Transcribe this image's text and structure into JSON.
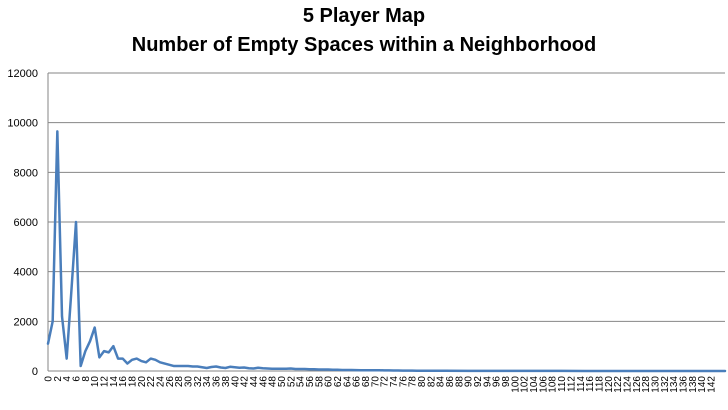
{
  "chart_data": {
    "type": "line",
    "title_lines": [
      "5 Player Map",
      "Number of Empty Spaces within a Neighborhood"
    ],
    "xlabel": "",
    "ylabel": "",
    "ylim": [
      0,
      12000
    ],
    "y_ticks": [
      0,
      2000,
      4000,
      6000,
      8000,
      10000,
      12000
    ],
    "grid": true,
    "legend": "none",
    "x_ticks": [
      0,
      2,
      4,
      6,
      8,
      10,
      12,
      14,
      16,
      18,
      20,
      22,
      24,
      26,
      28,
      30,
      32,
      34,
      36,
      38,
      40,
      42,
      44,
      46,
      48,
      50,
      52,
      54,
      56,
      58,
      60,
      62,
      64,
      66,
      68,
      70,
      72,
      74,
      76,
      78,
      80,
      82,
      84,
      86,
      88,
      90,
      92,
      94,
      96,
      98,
      100,
      102,
      104,
      106,
      108,
      110,
      112,
      114,
      116,
      118,
      120,
      122,
      124,
      126,
      128,
      130,
      132,
      134,
      136,
      138,
      140,
      142
    ],
    "x_range": [
      0,
      145
    ],
    "series_color": "#4a7ebb",
    "series": [
      {
        "x": [
          0,
          1,
          2,
          3,
          4,
          5,
          6,
          7,
          8,
          9,
          10,
          11,
          12,
          13,
          14,
          15,
          16,
          17,
          18,
          19,
          20,
          21,
          22,
          23,
          24,
          25,
          26,
          27,
          28,
          29,
          30,
          31,
          32,
          33,
          34,
          35,
          36,
          37,
          38,
          39,
          40,
          41,
          42,
          43,
          44,
          45,
          46,
          47,
          48,
          49,
          50,
          51,
          52,
          53,
          54,
          55,
          56,
          57,
          58,
          59,
          60,
          61,
          62,
          63,
          64,
          65,
          66,
          67,
          68,
          69,
          70,
          71,
          72,
          73,
          74,
          75,
          76,
          77,
          78,
          79,
          80,
          85,
          90,
          95,
          100,
          105,
          110,
          115,
          120,
          125,
          130,
          135,
          140,
          145
        ],
        "values": [
          1100,
          2000,
          9650,
          2200,
          500,
          3200,
          6000,
          200,
          800,
          1200,
          1750,
          550,
          800,
          750,
          1000,
          500,
          500,
          300,
          450,
          500,
          400,
          350,
          500,
          450,
          350,
          300,
          250,
          200,
          200,
          200,
          200,
          180,
          180,
          150,
          120,
          160,
          180,
          140,
          120,
          170,
          150,
          130,
          140,
          110,
          100,
          130,
          110,
          100,
          90,
          90,
          90,
          90,
          100,
          80,
          80,
          80,
          70,
          70,
          60,
          60,
          60,
          50,
          50,
          40,
          40,
          40,
          35,
          30,
          30,
          30,
          30,
          30,
          25,
          25,
          20,
          20,
          15,
          15,
          15,
          12,
          10,
          8,
          6,
          5,
          4,
          3,
          3,
          2,
          2,
          1,
          1,
          1,
          1,
          0
        ]
      }
    ]
  }
}
